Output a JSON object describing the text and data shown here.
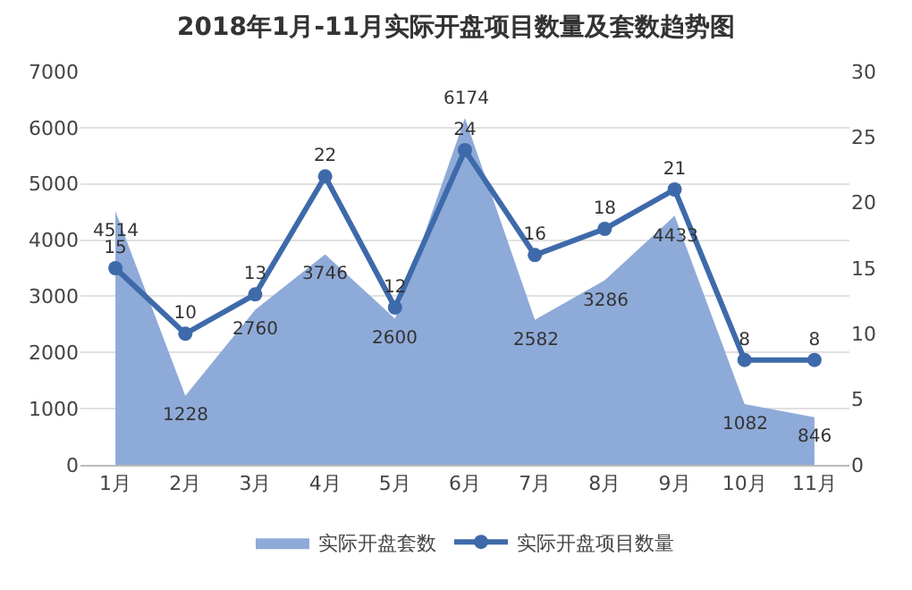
{
  "chart_data": {
    "type": "area",
    "title": "2018年1月-11月实际开盘项目数量及套数趋势图",
    "categories": [
      "1月",
      "2月",
      "3月",
      "4月",
      "5月",
      "6月",
      "7月",
      "8月",
      "9月",
      "10月",
      "11月"
    ],
    "series": [
      {
        "name": "实际开盘套数",
        "type": "area",
        "color": "#8eaad8",
        "values": [
          4514,
          1228,
          2760,
          3746,
          2600,
          6174,
          2582,
          3286,
          4433,
          1082,
          846
        ]
      },
      {
        "name": "实际开盘项目数量",
        "type": "line",
        "axis": "y2",
        "color": "#3e6aaa",
        "marker": "circle",
        "values": [
          15,
          10,
          13,
          22,
          12,
          24,
          16,
          18,
          21,
          8,
          8
        ]
      }
    ],
    "ylim": [
      0,
      7000
    ],
    "yticks": [
      0,
      1000,
      2000,
      3000,
      4000,
      5000,
      6000,
      7000
    ],
    "y2lim": [
      0,
      30
    ],
    "y2ticks": [
      0,
      5,
      10,
      15,
      20,
      25,
      30
    ],
    "grid": "y",
    "legend": "bottom",
    "data_labels": true
  }
}
